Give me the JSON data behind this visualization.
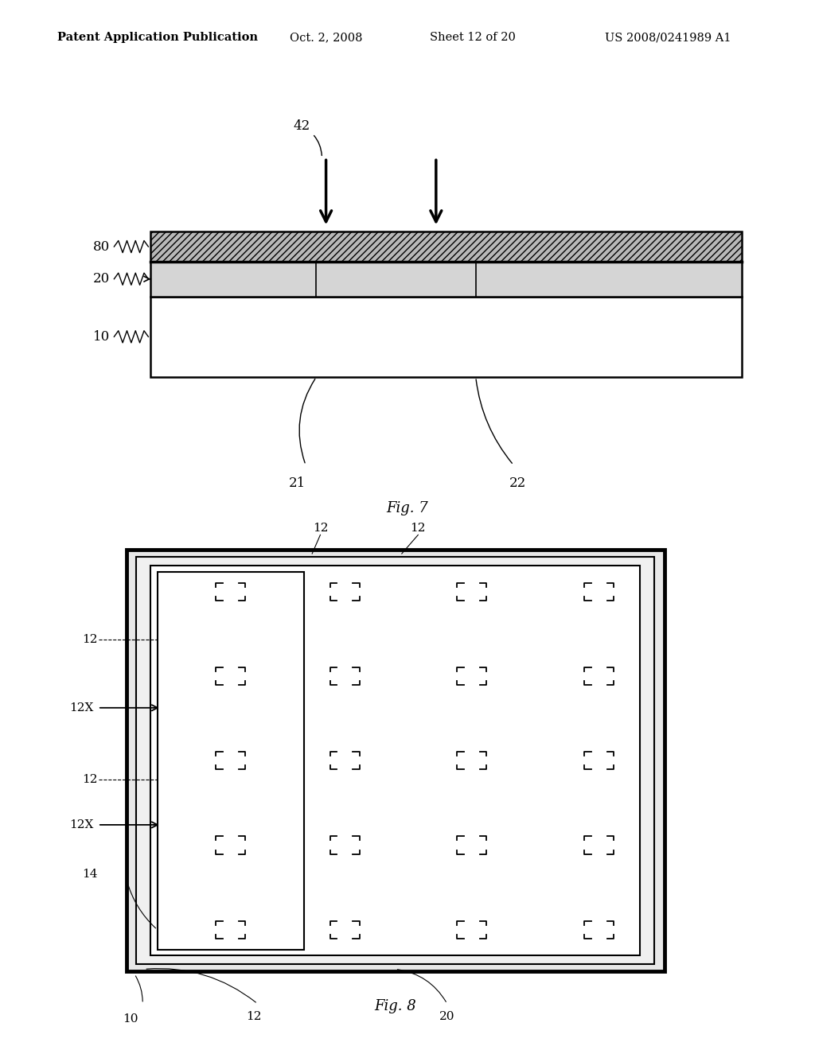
{
  "bg_color": "#ffffff",
  "header_text": "Patent Application Publication",
  "header_date": "Oct. 2, 2008",
  "header_sheet": "Sheet 12 of 20",
  "header_patent": "US 2008/0241989 A1",
  "fig7_caption": "Fig. 7",
  "fig8_caption": "Fig. 8"
}
